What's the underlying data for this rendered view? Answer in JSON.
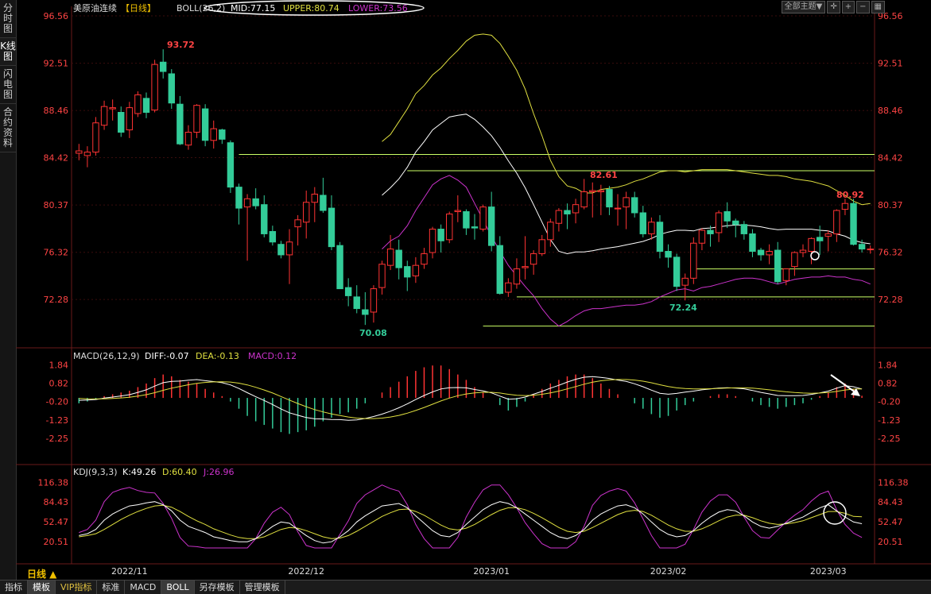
{
  "left_tabs": [
    "分时图",
    "K线图",
    "闪电图",
    "合约资料"
  ],
  "header": {
    "symbol": "美原油连续",
    "period_tag": "【日线】",
    "boll_name": "BOLL(26,2)",
    "mid": "MID:77.15",
    "upper": "UPPER:80.74",
    "lower": "LOWER:73.56",
    "theme_select": "全部主题▼"
  },
  "macd_header": {
    "name": "MACD(26,12,9)",
    "diff": "DIFF:-0.07",
    "dea": "DEA:-0.13",
    "macd": "MACD:0.12"
  },
  "kdj_header": {
    "name": "KDJ(9,3,3)",
    "k": "K:49.26",
    "d": "D:60.40",
    "j": "J:26.96"
  },
  "price_axis": [
    "96.56",
    "92.51",
    "88.46",
    "84.42",
    "80.37",
    "76.32",
    "72.28"
  ],
  "macd_axis": [
    "1.84",
    "0.82",
    "-0.20",
    "-1.23",
    "-2.25"
  ],
  "kdj_axis": [
    "116.38",
    "84.43",
    "52.47",
    "20.51"
  ],
  "date_labels": [
    "2022/11",
    "2022/12",
    "2023/01",
    "2023/02",
    "2023/03"
  ],
  "annotations": {
    "high": "93.72",
    "low": "70.08",
    "peak_jan": "82.61",
    "low_feb": "72.24",
    "recent_high": "80.92"
  },
  "period_label": "日线 ▲",
  "bottom_tabs": [
    "指标",
    "模板",
    "VIP指标",
    "标准",
    "MACD",
    "BOLL",
    "另存模板",
    "管理模板"
  ],
  "colors": {
    "up": "#ff3333",
    "down": "#33cc99",
    "boll_upper": "#e0e040",
    "boll_mid": "#ffffff",
    "boll_lower": "#cc33cc",
    "support": "#ccff66"
  },
  "chart_data": {
    "type": "candlestick",
    "title": "美原油连续",
    "ylim": [
      70,
      96.56
    ],
    "dates": [
      "2022-10-24",
      "2022-10-25",
      "2022-10-26",
      "2022-10-27",
      "2022-10-28",
      "2022-10-31",
      "2022-11-01",
      "2022-11-02",
      "2022-11-03",
      "2022-11-04",
      "2022-11-07",
      "2022-11-08",
      "2022-11-09",
      "2022-11-10",
      "2022-11-11",
      "2022-11-14",
      "2022-11-15",
      "2022-11-16",
      "2022-11-17",
      "2022-11-18",
      "2022-11-21",
      "2022-11-22",
      "2022-11-23",
      "2022-11-24",
      "2022-11-25",
      "2022-11-28",
      "2022-11-29",
      "2022-11-30",
      "2022-12-01",
      "2022-12-02",
      "2022-12-05",
      "2022-12-06",
      "2022-12-07",
      "2022-12-08",
      "2022-12-09",
      "2022-12-12",
      "2022-12-13",
      "2022-12-14",
      "2022-12-15",
      "2022-12-16",
      "2022-12-19",
      "2022-12-20",
      "2022-12-21",
      "2022-12-22",
      "2022-12-23",
      "2022-12-27",
      "2022-12-28",
      "2022-12-29",
      "2022-12-30",
      "2023-01-03",
      "2023-01-04",
      "2023-01-05",
      "2023-01-06",
      "2023-01-09",
      "2023-01-10",
      "2023-01-11",
      "2023-01-12",
      "2023-01-13",
      "2023-01-17",
      "2023-01-18",
      "2023-01-19",
      "2023-01-20",
      "2023-01-23",
      "2023-01-24",
      "2023-01-25",
      "2023-01-26",
      "2023-01-27",
      "2023-01-30",
      "2023-01-31",
      "2023-02-01",
      "2023-02-02",
      "2023-02-03",
      "2023-02-06",
      "2023-02-07",
      "2023-02-08",
      "2023-02-09",
      "2023-02-10",
      "2023-02-13",
      "2023-02-14",
      "2023-02-15",
      "2023-02-16",
      "2023-02-17",
      "2023-02-21",
      "2023-02-22",
      "2023-02-23",
      "2023-02-24",
      "2023-02-27",
      "2023-02-28",
      "2023-03-01",
      "2023-03-02",
      "2023-03-03",
      "2023-03-06",
      "2023-03-07",
      "2023-03-08"
    ],
    "ohlc": [
      [
        84.8,
        85.6,
        84.2,
        85.0
      ],
      [
        84.6,
        85.4,
        83.6,
        84.9
      ],
      [
        84.9,
        87.9,
        84.6,
        87.4
      ],
      [
        87.2,
        89.3,
        86.8,
        88.8
      ],
      [
        88.6,
        89.4,
        87.6,
        88.7
      ],
      [
        88.3,
        88.8,
        86.2,
        86.6
      ],
      [
        86.8,
        89.2,
        86.1,
        88.7
      ],
      [
        88.2,
        90.1,
        87.9,
        89.8
      ],
      [
        89.5,
        90.0,
        87.8,
        88.3
      ],
      [
        88.5,
        92.8,
        88.3,
        92.4
      ],
      [
        92.6,
        93.7,
        91.2,
        91.8
      ],
      [
        91.6,
        92.0,
        88.6,
        89.1
      ],
      [
        89.0,
        89.7,
        85.5,
        85.6
      ],
      [
        85.5,
        87.2,
        85.1,
        86.6
      ],
      [
        86.6,
        89.0,
        86.1,
        88.9
      ],
      [
        88.6,
        89.0,
        85.4,
        85.9
      ],
      [
        85.9,
        87.6,
        85.2,
        86.9
      ],
      [
        86.8,
        86.9,
        85.6,
        86.0
      ],
      [
        85.7,
        85.9,
        81.4,
        81.9
      ],
      [
        81.9,
        82.2,
        78.7,
        80.1
      ],
      [
        80.2,
        81.3,
        75.6,
        80.9
      ],
      [
        80.9,
        81.8,
        80.0,
        80.3
      ],
      [
        80.4,
        81.2,
        77.6,
        77.9
      ],
      [
        78.1,
        78.6,
        76.9,
        77.2
      ],
      [
        77.0,
        77.3,
        75.8,
        76.1
      ],
      [
        76.1,
        78.3,
        73.6,
        77.2
      ],
      [
        78.5,
        79.5,
        76.9,
        79.1
      ],
      [
        78.9,
        81.6,
        77.5,
        80.6
      ],
      [
        80.6,
        81.9,
        78.9,
        81.3
      ],
      [
        81.2,
        82.7,
        79.7,
        79.9
      ],
      [
        80.1,
        81.2,
        76.5,
        76.8
      ],
      [
        76.9,
        77.2,
        73.2,
        73.2
      ],
      [
        73.3,
        74.1,
        71.7,
        72.6
      ],
      [
        72.5,
        73.5,
        71.1,
        71.5
      ],
      [
        71.4,
        72.9,
        70.1,
        71.0
      ],
      [
        71.2,
        73.5,
        70.3,
        73.2
      ],
      [
        73.3,
        75.6,
        72.7,
        75.3
      ],
      [
        75.2,
        77.8,
        74.8,
        76.6
      ],
      [
        76.5,
        77.4,
        74.0,
        75.0
      ],
      [
        75.1,
        75.6,
        73.0,
        74.2
      ],
      [
        74.3,
        75.9,
        73.7,
        75.2
      ],
      [
        75.3,
        76.7,
        74.9,
        76.2
      ],
      [
        76.3,
        78.5,
        75.8,
        78.3
      ],
      [
        78.3,
        78.7,
        76.3,
        77.3
      ],
      [
        77.4,
        79.8,
        77.1,
        79.6
      ],
      [
        79.8,
        81.2,
        78.9,
        79.9
      ],
      [
        79.8,
        80.0,
        77.8,
        78.4
      ],
      [
        78.5,
        79.6,
        77.4,
        78.4
      ],
      [
        78.3,
        80.4,
        78.1,
        80.2
      ],
      [
        80.2,
        81.5,
        76.4,
        76.9
      ],
      [
        76.9,
        77.7,
        72.7,
        72.8
      ],
      [
        72.9,
        74.1,
        72.5,
        73.7
      ],
      [
        73.6,
        75.8,
        73.2,
        74.9
      ],
      [
        75.0,
        77.7,
        74.0,
        75.1
      ],
      [
        75.3,
        76.5,
        74.4,
        76.2
      ],
      [
        76.2,
        77.8,
        76.0,
        77.4
      ],
      [
        77.4,
        79.2,
        76.8,
        78.9
      ],
      [
        78.8,
        80.1,
        78.1,
        79.9
      ],
      [
        79.9,
        80.5,
        78.3,
        79.6
      ],
      [
        79.7,
        80.9,
        78.8,
        80.4
      ],
      [
        80.2,
        82.6,
        80.0,
        81.5
      ],
      [
        81.5,
        82.3,
        79.3,
        81.6
      ],
      [
        81.5,
        82.1,
        79.5,
        81.6
      ],
      [
        81.7,
        82.0,
        79.5,
        80.2
      ],
      [
        80.1,
        81.3,
        78.6,
        80.1
      ],
      [
        80.2,
        81.5,
        78.3,
        81.0
      ],
      [
        81.0,
        81.5,
        79.3,
        79.7
      ],
      [
        79.7,
        80.3,
        77.6,
        77.9
      ],
      [
        77.9,
        79.3,
        77.4,
        78.9
      ],
      [
        78.9,
        79.5,
        75.8,
        76.4
      ],
      [
        76.4,
        77.0,
        75.0,
        75.9
      ],
      [
        75.9,
        76.2,
        73.0,
        73.4
      ],
      [
        73.5,
        74.5,
        72.2,
        74.1
      ],
      [
        74.1,
        77.6,
        73.6,
        77.1
      ],
      [
        77.1,
        78.4,
        76.5,
        78.2
      ],
      [
        78.2,
        78.6,
        76.8,
        77.9
      ],
      [
        78.0,
        79.9,
        77.2,
        79.7
      ],
      [
        79.8,
        80.6,
        78.4,
        79.0
      ],
      [
        79.0,
        79.2,
        77.6,
        78.7
      ],
      [
        78.7,
        79.0,
        77.4,
        77.9
      ],
      [
        77.9,
        78.3,
        75.9,
        76.4
      ],
      [
        76.5,
        76.7,
        75.6,
        76.1
      ],
      [
        76.1,
        77.0,
        75.3,
        76.4
      ],
      [
        76.5,
        77.2,
        73.6,
        73.8
      ],
      [
        73.9,
        74.9,
        73.5,
        74.9
      ],
      [
        75.1,
        76.4,
        74.3,
        76.3
      ],
      [
        76.3,
        77.0,
        75.9,
        76.5
      ],
      [
        76.4,
        77.6,
        75.3,
        77.5
      ],
      [
        77.6,
        78.6,
        76.1,
        77.3
      ],
      [
        77.7,
        78.2,
        76.4,
        77.9
      ],
      [
        77.9,
        80.0,
        77.2,
        79.9
      ],
      [
        80.0,
        80.9,
        79.5,
        80.5
      ],
      [
        80.5,
        80.9,
        76.9,
        77.0
      ],
      [
        77.0,
        77.4,
        76.3,
        76.6
      ],
      [
        76.6,
        76.9,
        76.2,
        76.6
      ]
    ],
    "boll_upper": [
      85.8,
      86.4,
      87.5,
      88.6,
      89.9,
      90.6,
      91.5,
      92.1,
      92.9,
      93.6,
      94.4,
      94.9,
      95.0,
      94.9,
      94.2,
      93.1,
      91.9,
      90.3,
      88.2,
      86.3,
      84.2,
      82.8,
      82.0,
      81.8,
      81.4,
      81.4,
      81.7,
      81.8,
      81.9,
      82.1,
      82.4,
      82.6,
      82.9,
      83.2,
      83.3,
      83.3,
      83.2,
      83.3,
      83.4,
      83.4,
      83.4,
      83.4,
      83.3,
      83.2,
      83.1,
      83.0,
      82.9,
      82.9,
      82.8,
      82.6,
      82.5,
      82.4,
      82.2,
      82.0,
      81.6,
      81.2,
      80.7,
      80.4,
      80.5
    ],
    "boll_lower": [
      76.6,
      77.3,
      77.7,
      78.6,
      79.9,
      81.0,
      82.1,
      82.6,
      82.9,
      82.5,
      81.9,
      80.5,
      79.1,
      77.7,
      76.4,
      75.2,
      74.3,
      73.4,
      72.6,
      71.5,
      70.6,
      70.0,
      70.4,
      70.9,
      71.3,
      71.5,
      71.5,
      71.6,
      71.7,
      71.8,
      71.8,
      71.9,
      72.1,
      72.5,
      72.8,
      73.1,
      73.2,
      73.0,
      73.3,
      73.4,
      73.6,
      73.8,
      74.0,
      74.1,
      74.1,
      74.0,
      73.8,
      73.6,
      73.8,
      74.0,
      74.1,
      74.2,
      74.2,
      74.3,
      74.2,
      74.2,
      74.0,
      73.9,
      73.6
    ],
    "support_lines": [
      84.7,
      83.3,
      74.9,
      72.5,
      70.0
    ],
    "macd_hist": [
      -0.3,
      -0.2,
      -0.1,
      0.1,
      0.2,
      0.3,
      0.4,
      0.6,
      0.8,
      1.1,
      1.3,
      1.2,
      1.0,
      0.9,
      0.8,
      0.5,
      0.3,
      0.1,
      -0.2,
      -0.6,
      -1.0,
      -1.3,
      -1.5,
      -1.7,
      -1.9,
      -2.0,
      -1.9,
      -1.8,
      -1.6,
      -1.3,
      -1.1,
      -0.9,
      -0.8,
      -0.6,
      -0.3,
      0.0,
      0.3,
      0.6,
      0.9,
      1.2,
      1.5,
      1.7,
      1.8,
      1.8,
      1.6,
      1.3,
      1.0,
      0.6,
      0.3,
      0.0,
      -0.4,
      -0.7,
      -0.5,
      -0.2,
      0.2,
      0.5,
      0.8,
      1.0,
      1.2,
      1.3,
      1.3,
      1.1,
      0.8,
      0.5,
      0.2,
      0.0,
      -0.3,
      -0.6,
      -0.9,
      -1.1,
      -1.0,
      -0.7,
      -0.4,
      -0.2,
      0.0,
      0.1,
      0.2,
      0.2,
      0.1,
      0.0,
      -0.2,
      -0.4,
      -0.5,
      -0.6,
      -0.5,
      -0.4,
      -0.3,
      -0.1,
      0.1,
      0.3,
      0.6,
      0.8,
      0.5,
      0.12
    ],
    "kdj_k": [
      30,
      33,
      40,
      55,
      65,
      72,
      78,
      80,
      83,
      85,
      80,
      70,
      55,
      45,
      40,
      35,
      28,
      25,
      22,
      20,
      20,
      25,
      35,
      45,
      52,
      50,
      40,
      30,
      22,
      18,
      20,
      28,
      38,
      52,
      62,
      70,
      78,
      80,
      82,
      75,
      62,
      50,
      38,
      30,
      28,
      35,
      48,
      60,
      72,
      80,
      85,
      82,
      75,
      65,
      55,
      45,
      35,
      28,
      25,
      30,
      40,
      55,
      65,
      72,
      78,
      80,
      75,
      65,
      52,
      40,
      32,
      28,
      30,
      38,
      50,
      60,
      68,
      72,
      70,
      62,
      52,
      45,
      42,
      45,
      50,
      55,
      60,
      68,
      75,
      80,
      70,
      60,
      52,
      49.26
    ],
    "kdj_d": [
      28,
      30,
      33,
      40,
      48,
      56,
      63,
      69,
      74,
      78,
      79,
      76,
      69,
      61,
      54,
      48,
      41,
      36,
      31,
      27,
      25,
      25,
      28,
      34,
      40,
      43,
      42,
      38,
      33,
      28,
      25,
      26,
      30,
      37,
      45,
      53,
      61,
      67,
      72,
      73,
      69,
      63,
      55,
      47,
      41,
      39,
      42,
      48,
      56,
      64,
      71,
      75,
      75,
      72,
      66,
      59,
      51,
      43,
      37,
      35,
      37,
      43,
      50,
      57,
      64,
      69,
      71,
      69,
      63,
      55,
      47,
      41,
      37,
      37,
      41,
      47,
      54,
      60,
      63,
      63,
      59,
      54,
      50,
      48,
      49,
      51,
      54,
      59,
      64,
      69,
      69,
      66,
      61,
      60.4
    ],
    "kdj_j": [
      35,
      40,
      55,
      85,
      100,
      105,
      108,
      103,
      100,
      99,
      82,
      58,
      27,
      13,
      12,
      10,
      5,
      3,
      4,
      6,
      10,
      25,
      50,
      68,
      76,
      64,
      36,
      14,
      0,
      -2,
      10,
      32,
      54,
      82,
      96,
      104,
      112,
      106,
      102,
      80,
      48,
      25,
      4,
      -4,
      2,
      27,
      60,
      84,
      104,
      112,
      112,
      96,
      75,
      51,
      33,
      17,
      3,
      -2,
      1,
      20,
      45,
      79,
      95,
      102,
      106,
      102,
      83,
      57,
      30,
      10,
      2,
      2,
      16,
      40,
      68,
      86,
      96,
      96,
      84,
      60,
      38,
      27,
      26,
      39,
      52,
      63,
      72,
      86,
      97,
      102,
      72,
      48,
      34,
      26.96
    ],
    "latest": {
      "mid": 77.15,
      "upper": 80.74,
      "lower": 73.56,
      "diff": -0.07,
      "dea": -0.13,
      "macd": 0.12,
      "k": 49.26,
      "d": 60.4,
      "j": 26.96
    }
  }
}
